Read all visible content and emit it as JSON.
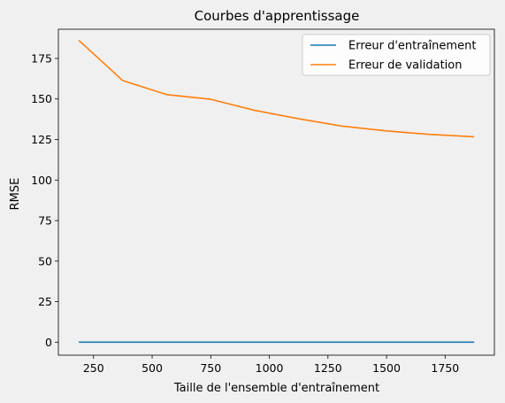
{
  "chart_data": {
    "type": "line",
    "title": "Courbes d'apprentissage",
    "xlabel": "Taille de l'ensemble d'entraînement",
    "ylabel": "RMSE",
    "xlim": [
      100,
      1960
    ],
    "ylim": [
      -8,
      193
    ],
    "x_ticks": [
      250,
      500,
      750,
      1000,
      1250,
      1500,
      1750
    ],
    "y_ticks": [
      0,
      25,
      50,
      75,
      100,
      125,
      150,
      175
    ],
    "grid": false,
    "legend_position": "top-right",
    "series": [
      {
        "name": "Erreur d'entraînement",
        "color": "#1f77b4",
        "x": [
          187,
          375,
          562,
          750,
          937,
          1125,
          1312,
          1500,
          1687,
          1874
        ],
        "y": [
          0,
          0,
          0,
          0,
          0,
          0,
          0,
          0,
          0,
          0
        ]
      },
      {
        "name": "Erreur de validation",
        "color": "#ff7f0e",
        "x": [
          187,
          375,
          562,
          750,
          937,
          1125,
          1312,
          1500,
          1687,
          1874
        ],
        "y": [
          186.2,
          161.3,
          152.7,
          149.8,
          143.0,
          137.8,
          133.2,
          130.3,
          128.1,
          126.7
        ]
      }
    ]
  }
}
